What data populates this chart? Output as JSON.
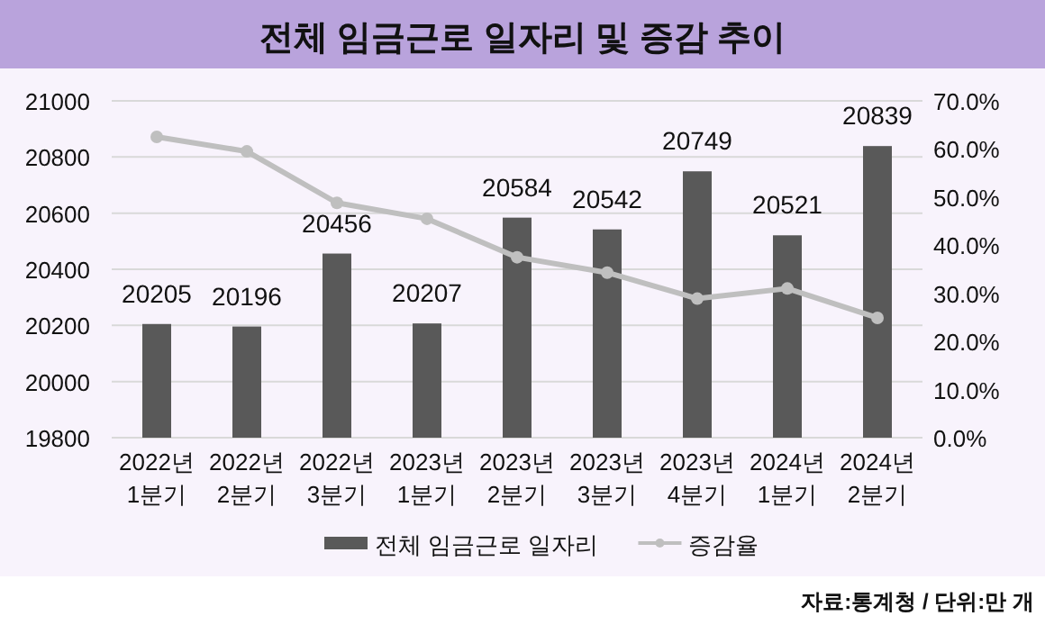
{
  "chart_data": {
    "type": "bar",
    "title": "전체 임금근로 일자리 및 증감 추이",
    "categories": [
      "2022년 1분기",
      "2022년 2분기",
      "2022년 3분기",
      "2023년 1분기",
      "2023년 2분기",
      "2023년 3분기",
      "2023년 4분기",
      "2024년 1분기",
      "2024년 2분기"
    ],
    "series": [
      {
        "name": "전체 임금근로 일자리",
        "color": "#595959",
        "values": [
          20205,
          20196,
          20456,
          20207,
          20584,
          20542,
          20749,
          20521,
          20839
        ],
        "value_labels": [
          "20205",
          "20196",
          "20456",
          "20207",
          "20584",
          "20542",
          "20749",
          "20521",
          "20839"
        ]
      },
      {
        "name": "증감율",
        "type": "line",
        "axis": "y2",
        "color": "#bfbfbf",
        "marker": "circle",
        "values": [
          62.5,
          59.5,
          48.8,
          45.5,
          37.5,
          34.3,
          28.9,
          31.0,
          24.9
        ]
      }
    ],
    "ylim": [
      19800,
      21000
    ],
    "yticks": [
      19800,
      20000,
      20200,
      20400,
      20600,
      20800,
      21000
    ],
    "y2lim": [
      0,
      70
    ],
    "y2ticks": [
      {
        "value": 0,
        "label": "0.0%"
      },
      {
        "value": 10,
        "label": "10.0%"
      },
      {
        "value": 20,
        "label": "20.0%"
      },
      {
        "value": 30,
        "label": "30.0%"
      },
      {
        "value": 40,
        "label": "40.0%"
      },
      {
        "value": 50,
        "label": "50.0%"
      },
      {
        "value": 60,
        "label": "60.0%"
      },
      {
        "value": 70,
        "label": "70.0%"
      }
    ],
    "grid": "y",
    "legend": "bottom",
    "annotations": [
      "자료:통계청 / 단위:만 개"
    ]
  }
}
